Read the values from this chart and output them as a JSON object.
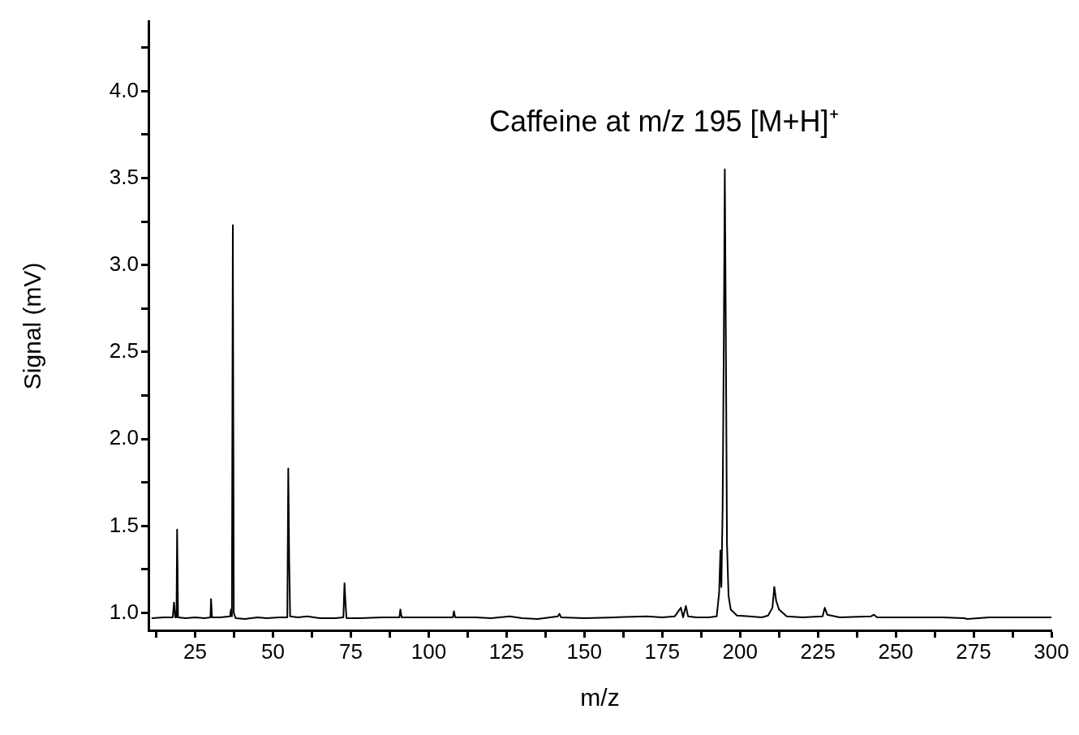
{
  "chart_data": {
    "type": "line",
    "xlabel": "m/z",
    "ylabel": "Signal (mV)",
    "annotations": [
      "Caffeine at m/z 195 [M+H]⁺"
    ],
    "xlim": [
      10,
      300
    ],
    "xticks": [
      {
        "value": 12.5,
        "label": null
      },
      25,
      {
        "value": 37.5,
        "label": null
      },
      50,
      {
        "value": 62.5,
        "label": null
      },
      75,
      {
        "value": 87.5,
        "label": null
      },
      100,
      {
        "value": 112.5,
        "label": null
      },
      125,
      {
        "value": 137.5,
        "label": null
      },
      150,
      {
        "value": 162.5,
        "label": null
      },
      175,
      {
        "value": 187.5,
        "label": null
      },
      200,
      {
        "value": 212.5,
        "label": null
      },
      225,
      {
        "value": 237.5,
        "label": null
      },
      250,
      {
        "value": 262.5,
        "label": null
      },
      275,
      {
        "value": 287.5,
        "label": null
      },
      300
    ],
    "ylim": [
      0.9,
      4.4
    ],
    "yticks": [
      {
        "value": 1,
        "label": "1.0"
      },
      {
        "value": 1.25,
        "label": null
      },
      1.5,
      {
        "value": 1.75,
        "label": null
      },
      {
        "value": 2,
        "label": "2.0"
      },
      {
        "value": 2.25,
        "label": null
      },
      2.5,
      {
        "value": 2.75,
        "label": null
      },
      {
        "value": 3,
        "label": "3.0"
      },
      {
        "value": 3.25,
        "label": null
      },
      3.5,
      {
        "value": 3.75,
        "label": null
      },
      {
        "value": 4,
        "label": "4.0"
      },
      {
        "value": 4.25,
        "label": null
      }
    ],
    "grid": false,
    "legend": false,
    "marker": "none",
    "line_style": "solid",
    "series": [
      {
        "color": "#000000",
        "x": [
          11,
          15,
          17.8,
          18.2,
          18.6,
          19,
          19.2,
          19.5,
          22,
          25,
          28,
          29.9,
          30.1,
          30.4,
          33,
          36.2,
          36.5,
          36.8,
          37.1,
          37.4,
          38,
          41,
          45,
          48,
          52,
          54.6,
          54.9,
          55.2,
          55.5,
          58,
          61,
          65,
          70,
          72.6,
          72.96,
          73.3,
          73.6,
          78,
          85,
          90.6,
          90.9,
          91.3,
          100,
          107.8,
          108.1,
          108.5,
          115,
          120,
          126,
          130,
          135,
          141.5,
          142,
          142.5,
          150,
          160,
          170,
          175,
          179,
          181,
          181.7,
          182.6,
          183.3,
          186,
          190,
          192.5,
          193.3,
          193.7,
          194,
          194.4,
          194.8,
          195.1,
          195.4,
          195.8,
          196.3,
          197,
          199,
          203,
          207,
          209,
          210.4,
          211,
          211.6,
          212.5,
          215,
          220,
          226.5,
          227.2,
          228,
          232,
          242,
          243,
          244,
          255,
          265,
          272,
          273,
          280,
          290,
          300
        ],
        "values": [
          0.97,
          0.975,
          0.975,
          1.06,
          0.975,
          0.975,
          1.48,
          0.975,
          0.97,
          0.975,
          0.97,
          0.975,
          1.08,
          0.975,
          0.975,
          0.98,
          1.02,
          0.98,
          3.23,
          1.0,
          0.97,
          0.965,
          0.975,
          0.97,
          0.975,
          0.975,
          1.83,
          1.3,
          0.98,
          0.975,
          0.98,
          0.97,
          0.97,
          0.975,
          1.17,
          1.05,
          0.97,
          0.97,
          0.975,
          0.975,
          1.02,
          0.975,
          0.975,
          0.975,
          1.01,
          0.975,
          0.975,
          0.97,
          0.98,
          0.97,
          0.965,
          0.98,
          0.995,
          0.975,
          0.97,
          0.975,
          0.98,
          0.975,
          0.98,
          1.03,
          0.975,
          1.04,
          0.98,
          0.975,
          0.975,
          0.98,
          1.12,
          1.36,
          1.15,
          1.6,
          2.6,
          3.55,
          2.7,
          1.4,
          1.1,
          1.02,
          0.985,
          0.98,
          0.975,
          0.985,
          1.03,
          1.15,
          1.07,
          1.02,
          0.98,
          0.975,
          0.98,
          1.03,
          0.99,
          0.975,
          0.98,
          0.99,
          0.975,
          0.975,
          0.975,
          0.97,
          0.965,
          0.975,
          0.975,
          0.975
        ]
      }
    ]
  }
}
